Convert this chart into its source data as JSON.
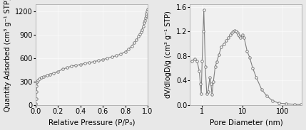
{
  "left_plot": {
    "xlabel": "Relative Pressure (P/P₀)",
    "ylabel": "Quantity Adsorbed (cm³ g⁻¹ STP)",
    "xlim": [
      0.0,
      1.0
    ],
    "ylim": [
      0,
      1300
    ],
    "yticks": [
      0,
      300,
      600,
      900,
      1200
    ],
    "xticks": [
      0.0,
      0.2,
      0.4,
      0.6,
      0.8,
      1.0
    ],
    "line_color": "#808080",
    "marker_color": "#6a6a6a",
    "x": [
      0.002,
      0.004,
      0.007,
      0.01,
      0.015,
      0.02,
      0.03,
      0.05,
      0.07,
      0.1,
      0.13,
      0.16,
      0.2,
      0.24,
      0.28,
      0.32,
      0.36,
      0.4,
      0.44,
      0.48,
      0.52,
      0.56,
      0.6,
      0.64,
      0.68,
      0.72,
      0.76,
      0.8,
      0.83,
      0.86,
      0.88,
      0.9,
      0.92,
      0.93,
      0.94,
      0.95,
      0.96,
      0.97,
      0.975,
      0.98,
      0.985,
      0.99,
      0.995,
      1.0
    ],
    "y": [
      20,
      80,
      170,
      240,
      295,
      315,
      335,
      355,
      365,
      380,
      395,
      410,
      430,
      460,
      480,
      500,
      510,
      520,
      535,
      545,
      558,
      570,
      585,
      600,
      615,
      635,
      655,
      685,
      720,
      760,
      800,
      840,
      880,
      910,
      940,
      970,
      1010,
      1060,
      1090,
      1120,
      1150,
      1180,
      1205,
      1230
    ]
  },
  "right_plot": {
    "xlabel": "Pore Diameter (nm)",
    "ylabel": "dV/dlogD/g (cm³ g⁻¹ STP)",
    "xlim": [
      0.5,
      300
    ],
    "ylim": [
      0,
      1.65
    ],
    "yticks": [
      0.0,
      0.4,
      0.8,
      1.2,
      1.6
    ],
    "line_color": "#808080",
    "marker_color": "#6a6a6a",
    "x": [
      0.55,
      0.65,
      0.75,
      0.85,
      0.9,
      0.95,
      1.0,
      1.05,
      1.1,
      1.2,
      1.3,
      1.4,
      1.55,
      1.65,
      1.75,
      1.9,
      2.1,
      2.3,
      2.6,
      3.0,
      3.5,
      4.0,
      4.5,
      5.0,
      5.5,
      6.0,
      6.5,
      7.0,
      7.5,
      8.0,
      8.5,
      9.0,
      10.0,
      11.0,
      13.0,
      15.0,
      18.0,
      22.0,
      30.0,
      40.0,
      55.0,
      80.0,
      120.0,
      200.0,
      280.0
    ],
    "y": [
      0.72,
      0.75,
      0.72,
      0.55,
      0.35,
      0.18,
      0.72,
      1.2,
      1.55,
      0.62,
      0.18,
      0.22,
      0.45,
      0.35,
      0.17,
      0.38,
      0.62,
      0.7,
      0.82,
      0.95,
      1.0,
      1.05,
      1.1,
      1.15,
      1.18,
      1.2,
      1.22,
      1.2,
      1.18,
      1.15,
      1.12,
      1.1,
      1.15,
      1.1,
      0.88,
      0.78,
      0.6,
      0.45,
      0.25,
      0.15,
      0.07,
      0.03,
      0.02,
      0.01,
      0.005
    ]
  },
  "bg_color": "#e8e8e8",
  "plot_bg": "#f0f0f0",
  "font_size": 7.5
}
